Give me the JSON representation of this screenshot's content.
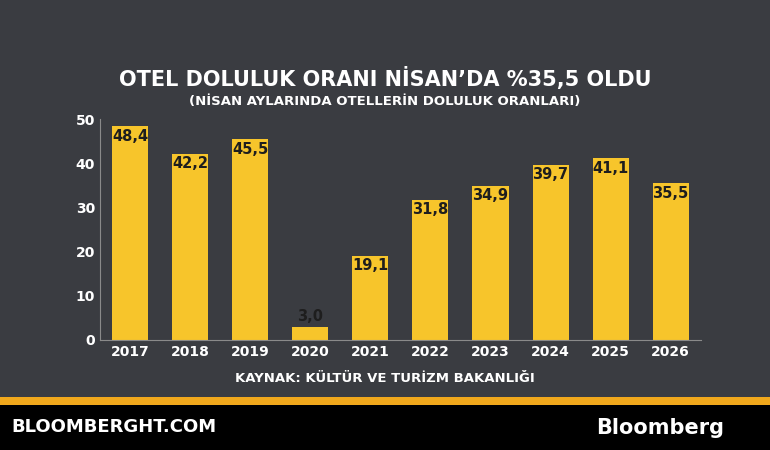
{
  "chart_data": {
    "type": "bar",
    "title": "OTEL DOLULUK ORANI NİSAN’DA %35,5 OLDU",
    "subtitle": "(NİSAN AYLARINDA OTELLERİN DOLULUK ORANLARI)",
    "source": "KAYNAK: KÜLTÜR VE TURİZM BAKANLIĞI",
    "annotations": [
      "BLOOMBERGHT.COM",
      "Bloomberg"
    ],
    "categories": [
      "2017",
      "2018",
      "2019",
      "2020",
      "2021",
      "2022",
      "2023",
      "2024",
      "2025",
      "2026"
    ],
    "values": [
      48.4,
      42.2,
      45.5,
      3.0,
      19.1,
      31.8,
      34.9,
      39.7,
      41.1,
      35.5
    ],
    "value_labels": [
      "48,4",
      "42,2",
      "45,5",
      "3,0",
      "19,1",
      "31,8",
      "34,9",
      "39,7",
      "41,1",
      "35,5"
    ],
    "color": "#f7c52b",
    "ylim": [
      0,
      50
    ],
    "yticks": [
      0,
      10,
      20,
      30,
      40,
      50
    ],
    "grid": false,
    "data_labels": true
  }
}
